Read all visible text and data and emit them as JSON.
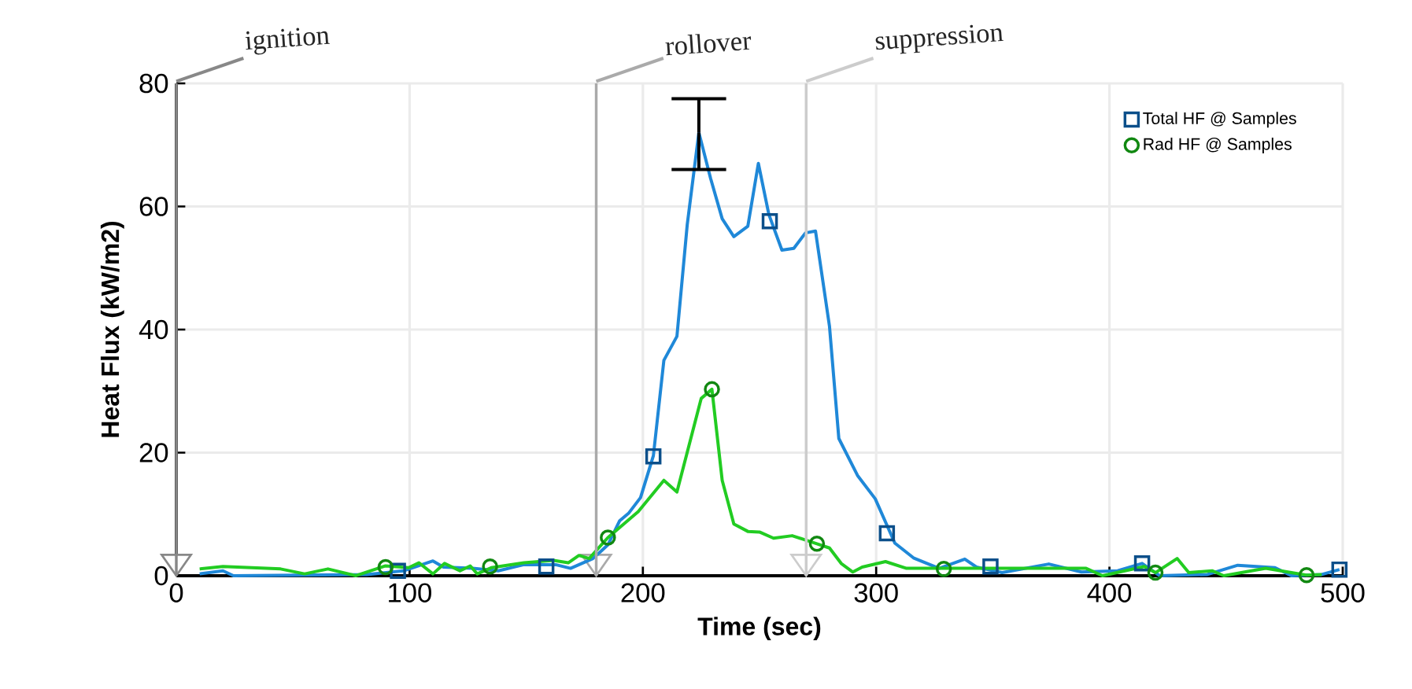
{
  "chart_data": {
    "type": "line",
    "xlabel": "Time (sec)",
    "ylabel": "Heat Flux (kW/m2)",
    "xlim": [
      0,
      500
    ],
    "ylim": [
      0,
      80
    ],
    "xticks": [
      0,
      100,
      200,
      300,
      400,
      500
    ],
    "yticks": [
      0,
      20,
      40,
      60,
      80
    ],
    "grid": true,
    "legend": "top right",
    "series": [
      {
        "color": "#1f88d8",
        "errors": [
          null,
          null,
          null,
          null,
          null,
          null,
          null,
          null,
          null,
          null,
          null,
          null,
          null,
          null,
          null,
          null,
          null,
          null,
          null,
          null,
          null,
          [
            66,
            77.5
          ],
          null,
          null,
          null,
          null,
          null,
          null,
          null,
          null,
          null,
          null,
          null,
          null,
          null,
          null,
          null,
          null,
          null,
          null,
          null,
          null,
          null,
          null,
          null,
          null,
          null,
          null,
          null,
          null,
          null,
          null,
          null
        ],
        "x": [
          10,
          20,
          24.5,
          81.7,
          97.6,
          110,
          114.5,
          127,
          138,
          149,
          162.6,
          169,
          178.6,
          185,
          190,
          194,
          199,
          204.5,
          209,
          214.6,
          219,
          224,
          229,
          234,
          239,
          245,
          249.5,
          254,
          259.6,
          264.7,
          269.7,
          274,
          280,
          284,
          292,
          299.6,
          308,
          316,
          327,
          338,
          343,
          354,
          374,
          388,
          403.5,
          414,
          421.5,
          442,
          455,
          471,
          478,
          491,
          498.6
        ],
        "values": [
          0.3,
          0.8,
          0,
          0.2,
          0.8,
          2.4,
          1.4,
          1.2,
          0.8,
          1.8,
          1.8,
          1.2,
          2.8,
          5,
          8.9,
          10.2,
          12.7,
          19.5,
          35,
          38.9,
          57,
          72,
          64.6,
          58,
          55.1,
          56.8,
          67,
          58.7,
          52.9,
          53.2,
          55.7,
          56,
          40.5,
          22.3,
          16.3,
          12.5,
          5.3,
          2.9,
          1.2,
          2.7,
          1.4,
          0.5,
          1.9,
          0.6,
          0.8,
          2,
          0,
          0.2,
          1.7,
          1.3,
          0,
          0.2,
          1
        ]
      },
      {
        "color": "#22cc22",
        "x": [
          10,
          20,
          44.7,
          55,
          65,
          77,
          89.7,
          99.6,
          104,
          110,
          115,
          121.6,
          126,
          129,
          135,
          149,
          161.7,
          168,
          172.6,
          177,
          185,
          198,
          209,
          214.6,
          225,
          229.6,
          234,
          239,
          245,
          250,
          256,
          264,
          274.6,
          280,
          285,
          290,
          294,
          304,
          313,
          329,
          354,
          390,
          397,
          415,
          419.7,
          429,
          434,
          444,
          449,
          467,
          484.5,
          491
        ],
        "values": [
          1.1,
          1.5,
          1.1,
          0.3,
          1.1,
          0,
          1.6,
          1.3,
          2.1,
          0.3,
          2,
          0.8,
          1.6,
          0.3,
          1.3,
          2.1,
          2.5,
          2.1,
          3.3,
          2.8,
          6.2,
          10.4,
          15.5,
          13.6,
          28.8,
          30.3,
          15.5,
          8.4,
          7.2,
          7.1,
          6.1,
          6.5,
          5.2,
          4.5,
          2,
          0.6,
          1.4,
          2.3,
          1.2,
          1.2,
          1.2,
          1.2,
          0,
          1.5,
          0.5,
          2.8,
          0.5,
          0.8,
          0,
          1.2,
          0.1,
          0.2
        ]
      },
      {
        "type": "scatter",
        "name": "Total HF @ Samples",
        "color": "#0b4f8a",
        "marker": "square",
        "x": [
          95,
          158.6,
          204.5,
          254.4,
          304.6,
          349,
          414,
          498.6
        ],
        "values": [
          0.8,
          1.5,
          19.4,
          57.6,
          6.9,
          1.5,
          2,
          1
        ]
      },
      {
        "type": "scatter",
        "name": "Rad HF @ Samples",
        "color": "#118811",
        "marker": "circle",
        "x": [
          89.7,
          134.5,
          185,
          229.6,
          274.6,
          329,
          419.7,
          484.5
        ],
        "values": [
          1.4,
          1.5,
          6.2,
          30.3,
          5.2,
          1.1,
          0.5,
          0.1
        ]
      }
    ],
    "ref_lines": [
      {
        "axis": "x",
        "value": 0,
        "label": "ignition",
        "color": "#888888"
      },
      {
        "axis": "x",
        "value": 180,
        "label": "rollover",
        "color": "#aaaaaa"
      },
      {
        "axis": "x",
        "value": 270,
        "label": "suppression",
        "color": "#cccccc"
      }
    ]
  }
}
